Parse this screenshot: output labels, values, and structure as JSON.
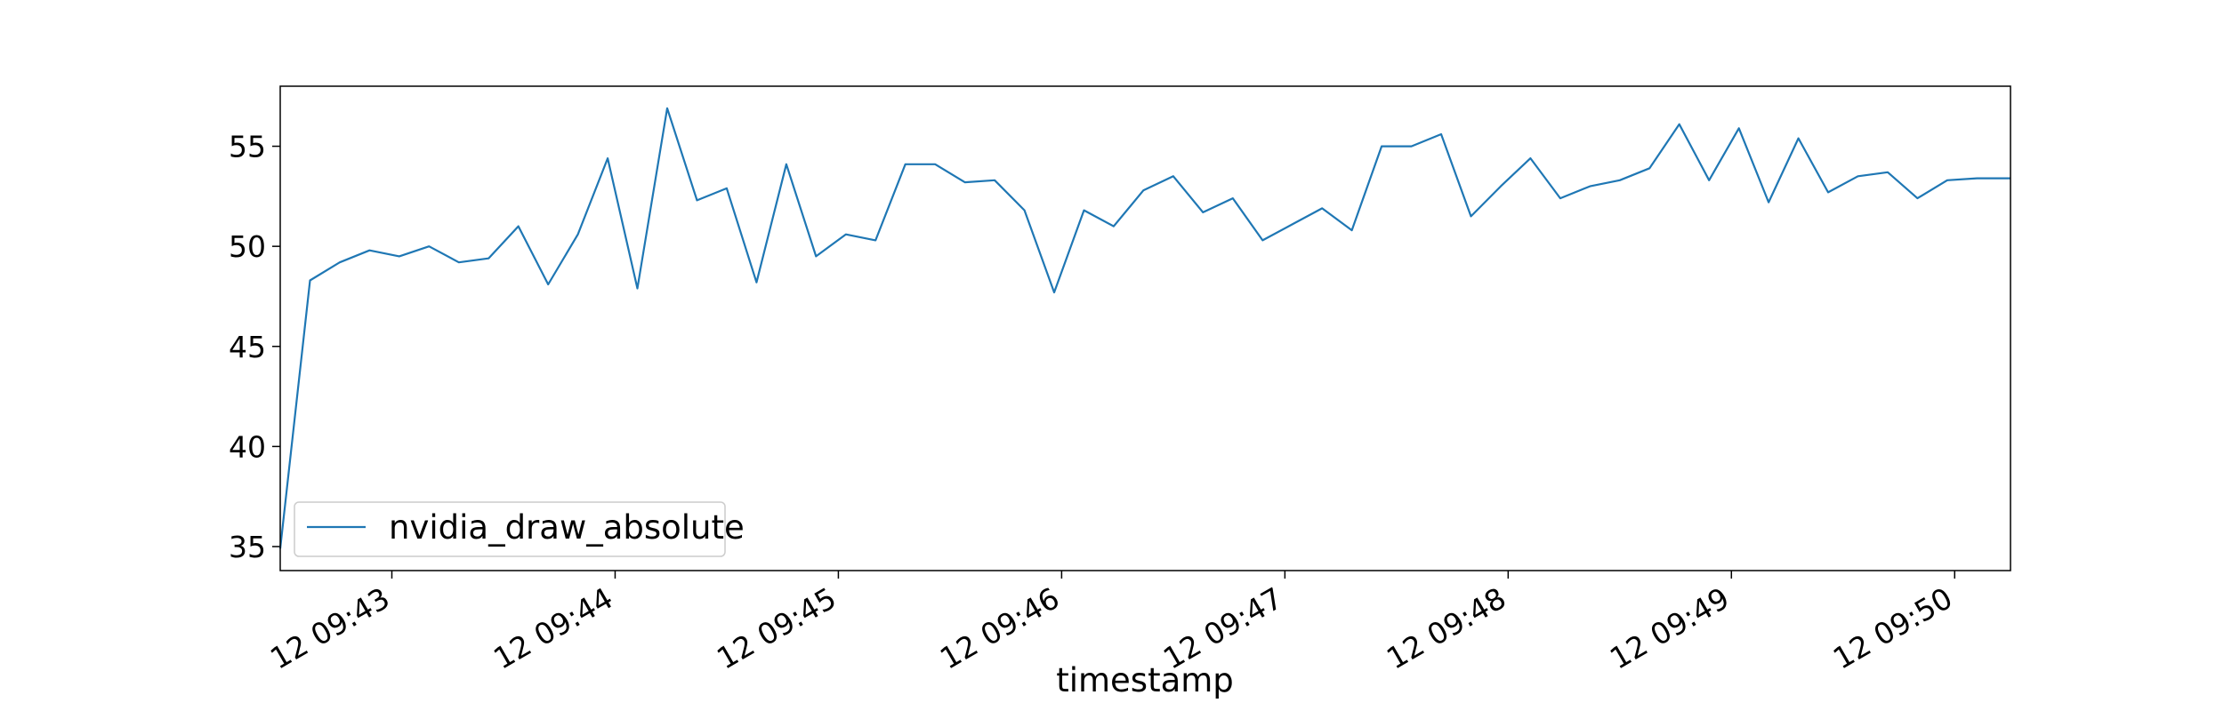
{
  "colors": {
    "series": "#1f77b4",
    "axis": "#000000",
    "legend_border": "#cccccc"
  },
  "chart_data": {
    "type": "line",
    "title": "",
    "xlabel": "timestamp",
    "ylabel": "",
    "xlim": [
      "09:42:30",
      "09:50:15"
    ],
    "ylim": [
      33.8,
      58.0
    ],
    "grid": false,
    "legend": "lower-left",
    "yticks": [
      35,
      40,
      45,
      50,
      55
    ],
    "xticks": [
      {
        "t": "09:43:00",
        "label": "12 09:43"
      },
      {
        "t": "09:44:00",
        "label": "12 09:44"
      },
      {
        "t": "09:45:00",
        "label": "12 09:45"
      },
      {
        "t": "09:46:00",
        "label": "12 09:46"
      },
      {
        "t": "09:47:00",
        "label": "12 09:47"
      },
      {
        "t": "09:48:00",
        "label": "12 09:48"
      },
      {
        "t": "09:49:00",
        "label": "12 09:49"
      },
      {
        "t": "09:50:00",
        "label": "12 09:50"
      }
    ],
    "series": [
      {
        "name": "nvidia_draw_absolute",
        "x": [
          "09:42:30",
          "09:42:38",
          "09:42:46",
          "09:42:54",
          "09:43:02",
          "09:43:10",
          "09:43:18",
          "09:43:26",
          "09:43:34",
          "09:43:42",
          "09:43:50",
          "09:43:58",
          "09:44:06",
          "09:44:14",
          "09:44:22",
          "09:44:30",
          "09:44:38",
          "09:44:46",
          "09:44:54",
          "09:45:02",
          "09:45:10",
          "09:45:18",
          "09:45:26",
          "09:45:34",
          "09:45:42",
          "09:45:50",
          "09:45:58",
          "09:46:06",
          "09:46:14",
          "09:46:22",
          "09:46:30",
          "09:46:38",
          "09:46:46",
          "09:46:54",
          "09:47:02",
          "09:47:10",
          "09:47:18",
          "09:47:26",
          "09:47:34",
          "09:47:42",
          "09:47:50",
          "09:47:58",
          "09:48:06",
          "09:48:14",
          "09:48:22",
          "09:48:30",
          "09:48:38",
          "09:48:46",
          "09:48:54",
          "09:49:02",
          "09:49:10",
          "09:49:18",
          "09:49:26",
          "09:49:34",
          "09:49:42",
          "09:49:50",
          "09:49:58",
          "09:50:06",
          "09:50:15"
        ],
        "y": [
          34.9,
          48.3,
          49.2,
          49.8,
          49.5,
          50.0,
          49.2,
          49.4,
          51.0,
          48.1,
          50.6,
          54.4,
          47.9,
          56.9,
          52.3,
          52.9,
          48.2,
          54.1,
          49.5,
          50.6,
          50.3,
          54.1,
          54.1,
          53.2,
          53.3,
          51.8,
          47.7,
          51.8,
          51.0,
          52.8,
          53.5,
          51.7,
          52.4,
          50.3,
          51.1,
          51.9,
          50.8,
          55.0,
          55.0,
          55.6,
          51.5,
          53.0,
          54.4,
          52.4,
          53.0,
          53.3,
          53.9,
          56.1,
          53.3,
          55.9,
          52.2,
          55.4,
          52.7,
          53.5,
          53.7,
          52.4,
          53.3,
          53.4,
          53.4
        ]
      }
    ]
  }
}
